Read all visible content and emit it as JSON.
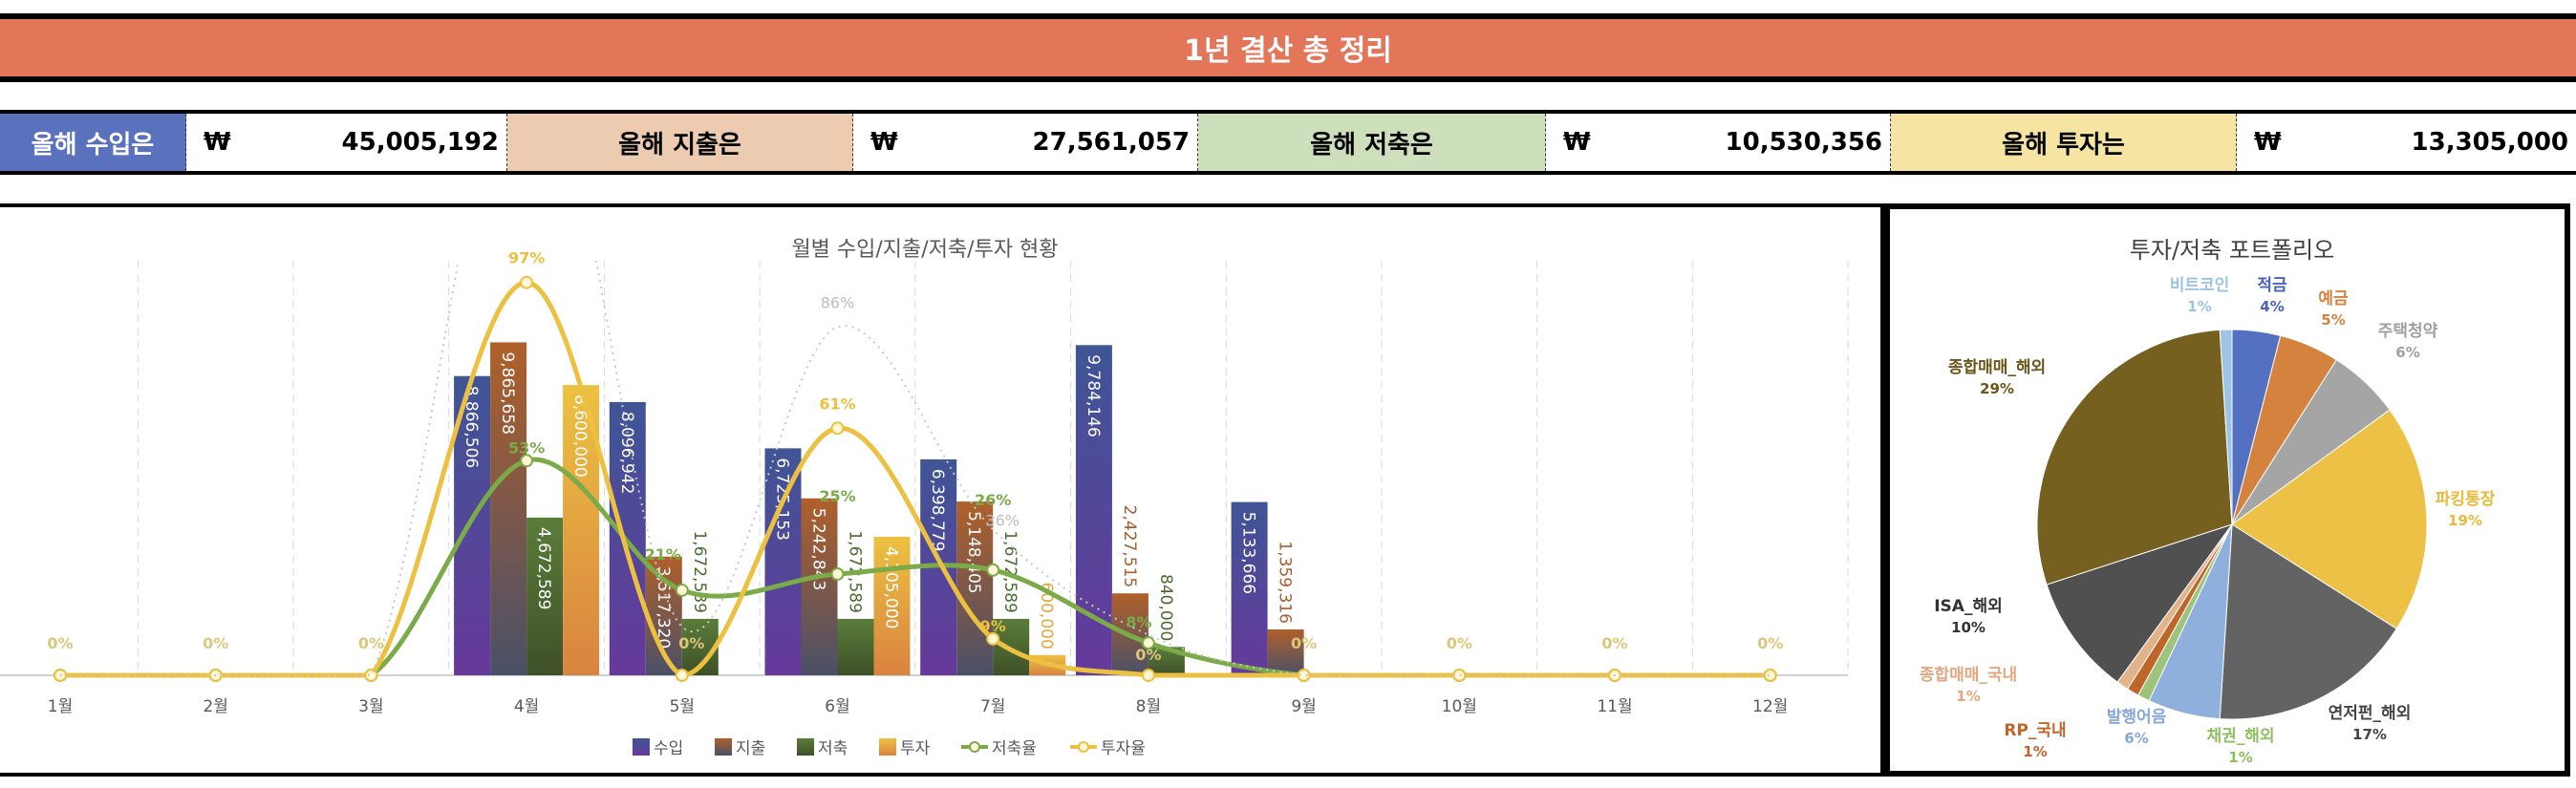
{
  "header": {
    "title": "1년 결산 총 정리"
  },
  "summary": [
    {
      "label": "올해 수입은",
      "currency": "₩",
      "value": "45,005,192",
      "color": "#5a72be",
      "text_color": "#ffffff"
    },
    {
      "label": "올해 지출은",
      "currency": "₩",
      "value": "27,561,057",
      "color": "#eccbb0",
      "text_color": "#000000"
    },
    {
      "label": "올해 저축은",
      "currency": "₩",
      "value": "10,530,356",
      "color": "#cde0bb",
      "text_color": "#000000"
    },
    {
      "label": "올해 투자는",
      "currency": "₩",
      "value": "13,305,000",
      "color": "#f6e5a2",
      "text_color": "#000000"
    }
  ],
  "chart_data": [
    {
      "type": "bar",
      "title": "월별 수입/지출/저축/투자 현황",
      "categories": [
        "1월",
        "2월",
        "3월",
        "4월",
        "5월",
        "6월",
        "7월",
        "8월",
        "9월",
        "10월",
        "11월",
        "12월"
      ],
      "ylim": [
        0,
        12000000
      ],
      "y2lim": [
        0,
        100
      ],
      "grid": "vertical-dashed",
      "legend": "bottom",
      "series": [
        {
          "name": "수입",
          "kind": "bar",
          "color": "#4a4b9a",
          "values": [
            0,
            0,
            0,
            8866506,
            8096942,
            6725153,
            6398779,
            9784146,
            5133666,
            0,
            0,
            0
          ],
          "labels": [
            "",
            "",
            "",
            "8,866,506",
            "8,096,942",
            "6,725,153",
            "6,398,779",
            "9,784,146",
            "5,133,666",
            "",
            "",
            ""
          ]
        },
        {
          "name": "지출",
          "kind": "bar",
          "color": "#a85d2c",
          "values": [
            0,
            0,
            0,
            9865658,
            3517320,
            5242843,
            5148405,
            2427515,
            1359316,
            0,
            0,
            0
          ],
          "labels": [
            "",
            "",
            "",
            "9,865,658",
            "3,517,320",
            "5,242,843",
            "5,148,405",
            "2,427,515",
            "1,359,316",
            "",
            "",
            ""
          ]
        },
        {
          "name": "저축",
          "kind": "bar",
          "color": "#4a6b30",
          "values": [
            0,
            0,
            0,
            4672589,
            1672589,
            1672589,
            1672589,
            840000,
            0,
            0,
            0,
            0
          ],
          "labels": [
            "",
            "",
            "",
            "4,672,589",
            "1,672,589",
            "1,672,589",
            "1,672,589",
            "840,000",
            "",
            "",
            "",
            ""
          ]
        },
        {
          "name": "투자",
          "kind": "bar",
          "color": "#e6a83e",
          "values": [
            0,
            0,
            0,
            8600000,
            0,
            4105000,
            600000,
            0,
            0,
            0,
            0,
            0
          ],
          "labels": [
            "",
            "",
            "",
            "8,600,000",
            "",
            "4,105,000",
            "600,000",
            "",
            "",
            "",
            "",
            ""
          ]
        },
        {
          "name": "저축율",
          "kind": "line",
          "axis": "y2",
          "color": "#7aab48",
          "values": [
            0,
            0,
            0,
            53,
            21,
            25,
            26,
            8,
            0,
            0,
            0,
            0
          ],
          "labels": [
            "",
            "",
            "",
            "53%",
            "21%",
            "25%",
            "26%",
            "8%",
            "",
            "",
            "",
            ""
          ]
        },
        {
          "name": "투자율",
          "kind": "line",
          "axis": "y2",
          "color": "#ecc040",
          "values": [
            0,
            0,
            0,
            97,
            0,
            61,
            9,
            0,
            0,
            0,
            0,
            0
          ],
          "labels": [
            "0%",
            "0%",
            "0%",
            "97%",
            "0%",
            "61%",
            "9%",
            "0%",
            "0%",
            "0%",
            "0%",
            "0%"
          ]
        },
        {
          "kind": "dotted-line",
          "axis": "y2",
          "color": "#c8c8c8",
          "values": [
            0,
            0,
            0,
            160,
            12,
            86,
            36,
            10,
            0,
            0,
            0,
            0
          ],
          "labels": [
            "",
            "",
            "",
            "",
            "",
            "86%",
            "36%",
            "",
            "",
            "",
            "",
            ""
          ]
        }
      ]
    },
    {
      "type": "pie",
      "title": "투자/저축 포트폴리오",
      "slices": [
        {
          "label": "적금",
          "value": 4,
          "pct": "4%",
          "color": "#5470c0",
          "text_color": "#4a63b8"
        },
        {
          "label": "예금",
          "value": 5,
          "pct": "5%",
          "color": "#d6823f",
          "text_color": "#d6823f"
        },
        {
          "label": "주택청약",
          "value": 6,
          "pct": "6%",
          "color": "#a5a5a5",
          "text_color": "#a0a0a0"
        },
        {
          "label": "파킹통장",
          "value": 19,
          "pct": "19%",
          "color": "#ecc146",
          "text_color": "#e8b93a"
        },
        {
          "label": "연저펀_해외",
          "value": 17,
          "pct": "17%",
          "color": "#636363",
          "text_color": "#444444"
        },
        {
          "label": "발행어음",
          "value": 6,
          "pct": "6%",
          "color": "#8fb0dc",
          "text_color": "#86a8d8"
        },
        {
          "label": "채권_해외",
          "value": 1,
          "pct": "1%",
          "color": "#9dc47a",
          "text_color": "#8cc060"
        },
        {
          "label": "RP_국내",
          "value": 1,
          "pct": "1%",
          "color": "#c0652a",
          "text_color": "#c0652a"
        },
        {
          "label": "종합매매_국내",
          "value": 1,
          "pct": "1%",
          "color": "#e2b28a",
          "text_color": "#e2a880"
        },
        {
          "label": "ISA_해외",
          "value": 10,
          "pct": "10%",
          "color": "#505050",
          "text_color": "#333333"
        },
        {
          "label": "종합매매_해외",
          "value": 29,
          "pct": "29%",
          "color": "#76601f",
          "text_color": "#6b561a"
        },
        {
          "label": "비트코인",
          "value": 1,
          "pct": "1%",
          "color": "#9dc3e6",
          "text_color": "#9dc3e6"
        }
      ]
    }
  ]
}
